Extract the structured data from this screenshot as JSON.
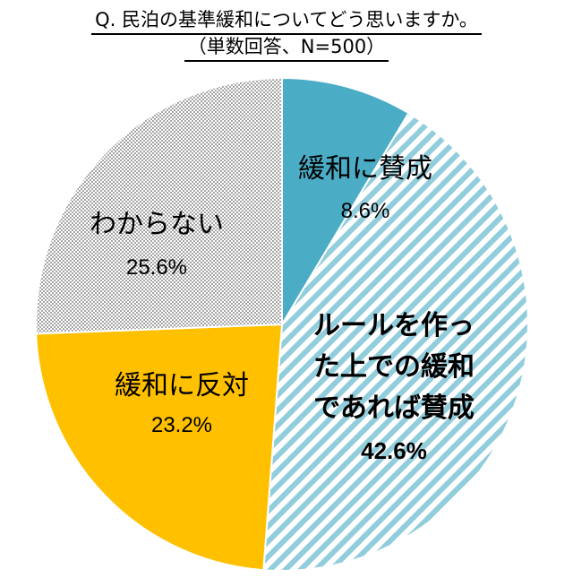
{
  "chart_data": {
    "type": "pie",
    "title": "Q. 民泊の基準緩和についてどう思いますか。",
    "subtitle": "（単数回答、N=500）",
    "start": "top",
    "direction": "clockwise",
    "slices": [
      {
        "label": "緩和に賛成",
        "value": 8.6,
        "value_label": "8.6%",
        "color": "#4BACC6",
        "fill": "solid"
      },
      {
        "label": "ルールを作った上での緩和であれば賛成",
        "label_lines": [
          "ルールを作っ",
          "た上での緩和",
          "であれば賛成"
        ],
        "value": 42.6,
        "value_label": "42.6%",
        "color": "#92CDDC",
        "fill": "diagonal-stripes"
      },
      {
        "label": "緩和に反対",
        "value": 23.2,
        "value_label": "23.2%",
        "color": "#FFC000",
        "fill": "solid"
      },
      {
        "label": "わからない",
        "value": 25.6,
        "value_label": "25.6%",
        "color": "#A6A6A6",
        "fill": "dotted"
      }
    ]
  }
}
